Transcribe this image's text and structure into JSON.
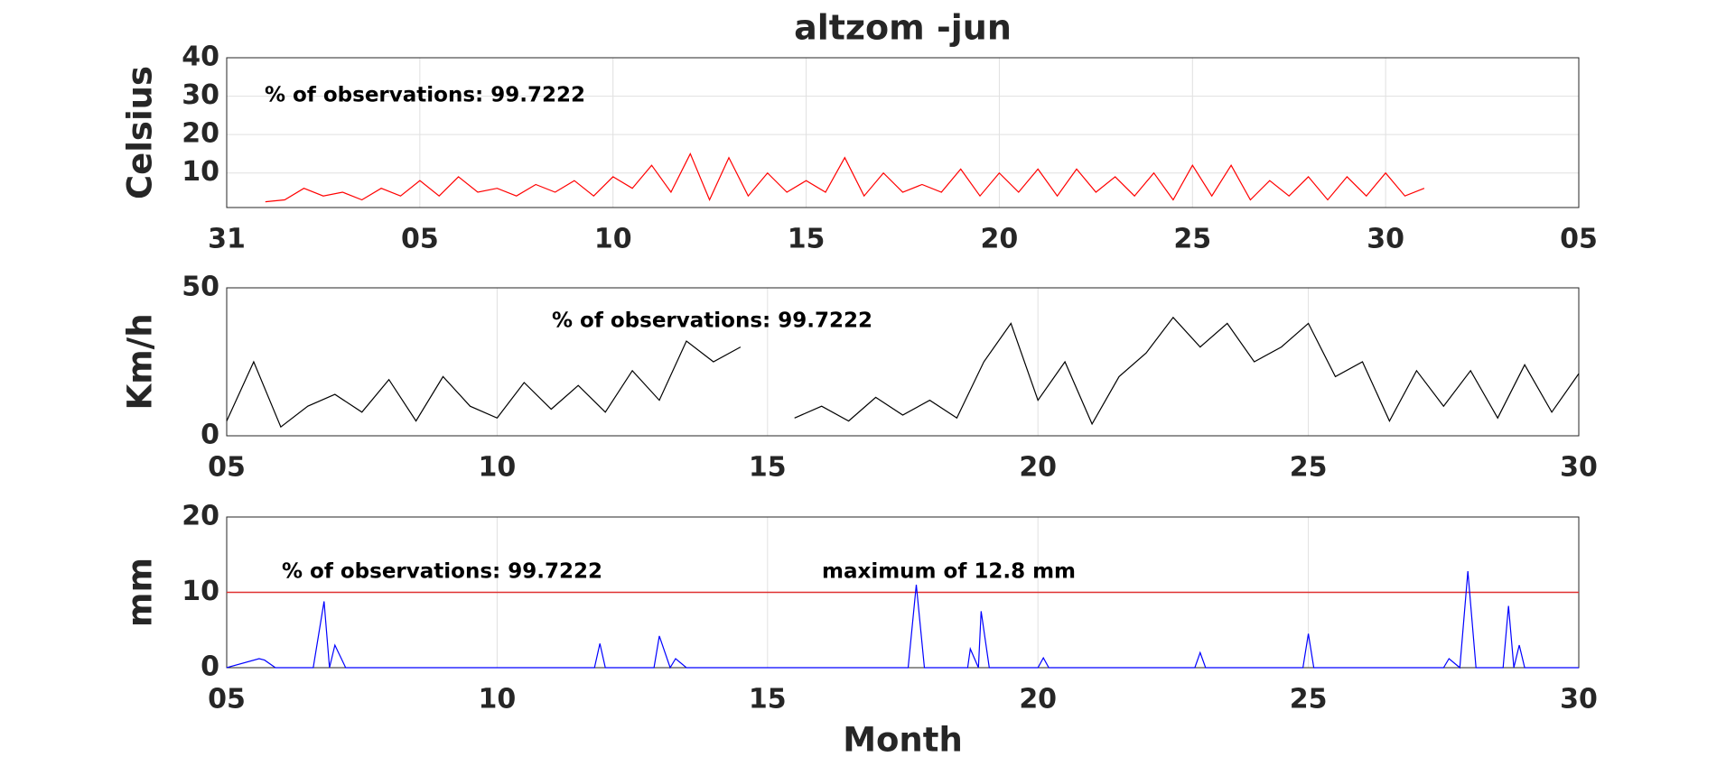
{
  "charts": [
    {
      "type": "line",
      "title": "altzom -jun",
      "ylabel": "Celsius",
      "annotations": [
        "% of observations: 99.7222"
      ],
      "xlim": [
        0,
        35
      ],
      "xticks": [
        {
          "value": 0,
          "label": "31"
        },
        {
          "value": 5,
          "label": "05"
        },
        10,
        15,
        20,
        25,
        30,
        {
          "value": 35,
          "label": "05"
        }
      ],
      "ylim": [
        1,
        40
      ],
      "yticks": [
        10,
        20,
        30,
        40
      ],
      "grid": true,
      "x": [
        1,
        1.5,
        2,
        2.5,
        3,
        3.5,
        4,
        4.5,
        5,
        5.5,
        6,
        6.5,
        7,
        7.5,
        8,
        8.5,
        9,
        9.5,
        10,
        10.5,
        11,
        11.5,
        12,
        12.5,
        13,
        13.5,
        14,
        14.5,
        15,
        15.5,
        16,
        16.5,
        17,
        17.5,
        18,
        18.5,
        19,
        19.5,
        20,
        20.5,
        21,
        21.5,
        22,
        22.5,
        23,
        23.5,
        24,
        24.5,
        25,
        25.5,
        26,
        26.5,
        27,
        27.5,
        28,
        28.5,
        29,
        29.5,
        30,
        30.5,
        31
      ],
      "series": [
        {
          "color": "#ff0000",
          "values": [
            2.5,
            3,
            6,
            4,
            5,
            3,
            6,
            4,
            8,
            4,
            9,
            5,
            6,
            4,
            7,
            5,
            8,
            4,
            9,
            6,
            12,
            5,
            15,
            3,
            14,
            4,
            10,
            5,
            8,
            5,
            14,
            4,
            10,
            5,
            7,
            5,
            11,
            4,
            10,
            5,
            11,
            4,
            11,
            5,
            9,
            4,
            10,
            3,
            12,
            4,
            12,
            3,
            8,
            4,
            9,
            3,
            9,
            4,
            10,
            4,
            6
          ]
        }
      ]
    },
    {
      "type": "line",
      "ylabel": "Km/h",
      "annotations": [
        "% of observations: 99.7222"
      ],
      "xlim": [
        5,
        30
      ],
      "xticks": [
        {
          "value": 5,
          "label": "05"
        },
        10,
        15,
        20,
        25,
        30
      ],
      "ylim": [
        0,
        50
      ],
      "yticks": [
        0,
        50
      ],
      "grid": true,
      "x": [
        5,
        5.5,
        6,
        6.5,
        7,
        7.5,
        8,
        8.5,
        9,
        9.5,
        10,
        10.5,
        11,
        11.5,
        12,
        12.5,
        13,
        13.5,
        14,
        14.5,
        15,
        15.5,
        16,
        16.5,
        17,
        17.5,
        18,
        18.5,
        19,
        19.5,
        20,
        20.5,
        21,
        21.5,
        22,
        22.5,
        23,
        23.5,
        24,
        24.5,
        25,
        25.5,
        26,
        26.5,
        27,
        27.5,
        28,
        28.5,
        29,
        29.5,
        30
      ],
      "series": [
        {
          "color": "#000000",
          "values": [
            5,
            25,
            3,
            10,
            14,
            8,
            19,
            5,
            20,
            10,
            6,
            18,
            9,
            17,
            8,
            22,
            12,
            32,
            25,
            30,
            null,
            6,
            10,
            5,
            13,
            7,
            12,
            6,
            25,
            38,
            12,
            25,
            4,
            20,
            28,
            40,
            30,
            38,
            25,
            30,
            38,
            20,
            25,
            5,
            22,
            10,
            22,
            6,
            24,
            8,
            21
          ]
        }
      ]
    },
    {
      "type": "line",
      "ylabel": "mm",
      "xlabel": "Month",
      "annotations": [
        "% of observations: 99.7222",
        "maximum of 12.8 mm"
      ],
      "xlim": [
        5,
        30
      ],
      "xticks": [
        {
          "value": 5,
          "label": "05"
        },
        10,
        15,
        20,
        25,
        30
      ],
      "ylim": [
        0,
        20
      ],
      "yticks": [
        0,
        10,
        20
      ],
      "grid": true,
      "hline": {
        "value": 10,
        "color": "#e03030"
      },
      "x": [
        5,
        5.6,
        5.7,
        5.9,
        6.6,
        6.8,
        6.9,
        7.0,
        7.2,
        11.8,
        11.9,
        12.0,
        12.9,
        13.0,
        13.2,
        13.3,
        13.5,
        17.6,
        17.75,
        17.9,
        18.7,
        18.75,
        18.9,
        18.95,
        19.1,
        20.0,
        20.1,
        20.2,
        22.9,
        23.0,
        23.1,
        24.9,
        25.0,
        25.1,
        27.5,
        27.6,
        27.8,
        27.95,
        28.1,
        28.6,
        28.7,
        28.8,
        28.9,
        29.0,
        30
      ],
      "series": [
        {
          "color": "#0000ff",
          "values": [
            0,
            1.2,
            1.0,
            0,
            0,
            8.8,
            0,
            3,
            0,
            0,
            3.2,
            0,
            0,
            4.2,
            0,
            1.2,
            0,
            0,
            11,
            0,
            0,
            2.5,
            0,
            7.5,
            0,
            0,
            1.3,
            0,
            0,
            2,
            0,
            0,
            4.5,
            0,
            0,
            1.2,
            0,
            12.8,
            0,
            0,
            8.2,
            0,
            3,
            0,
            0
          ]
        }
      ]
    }
  ]
}
